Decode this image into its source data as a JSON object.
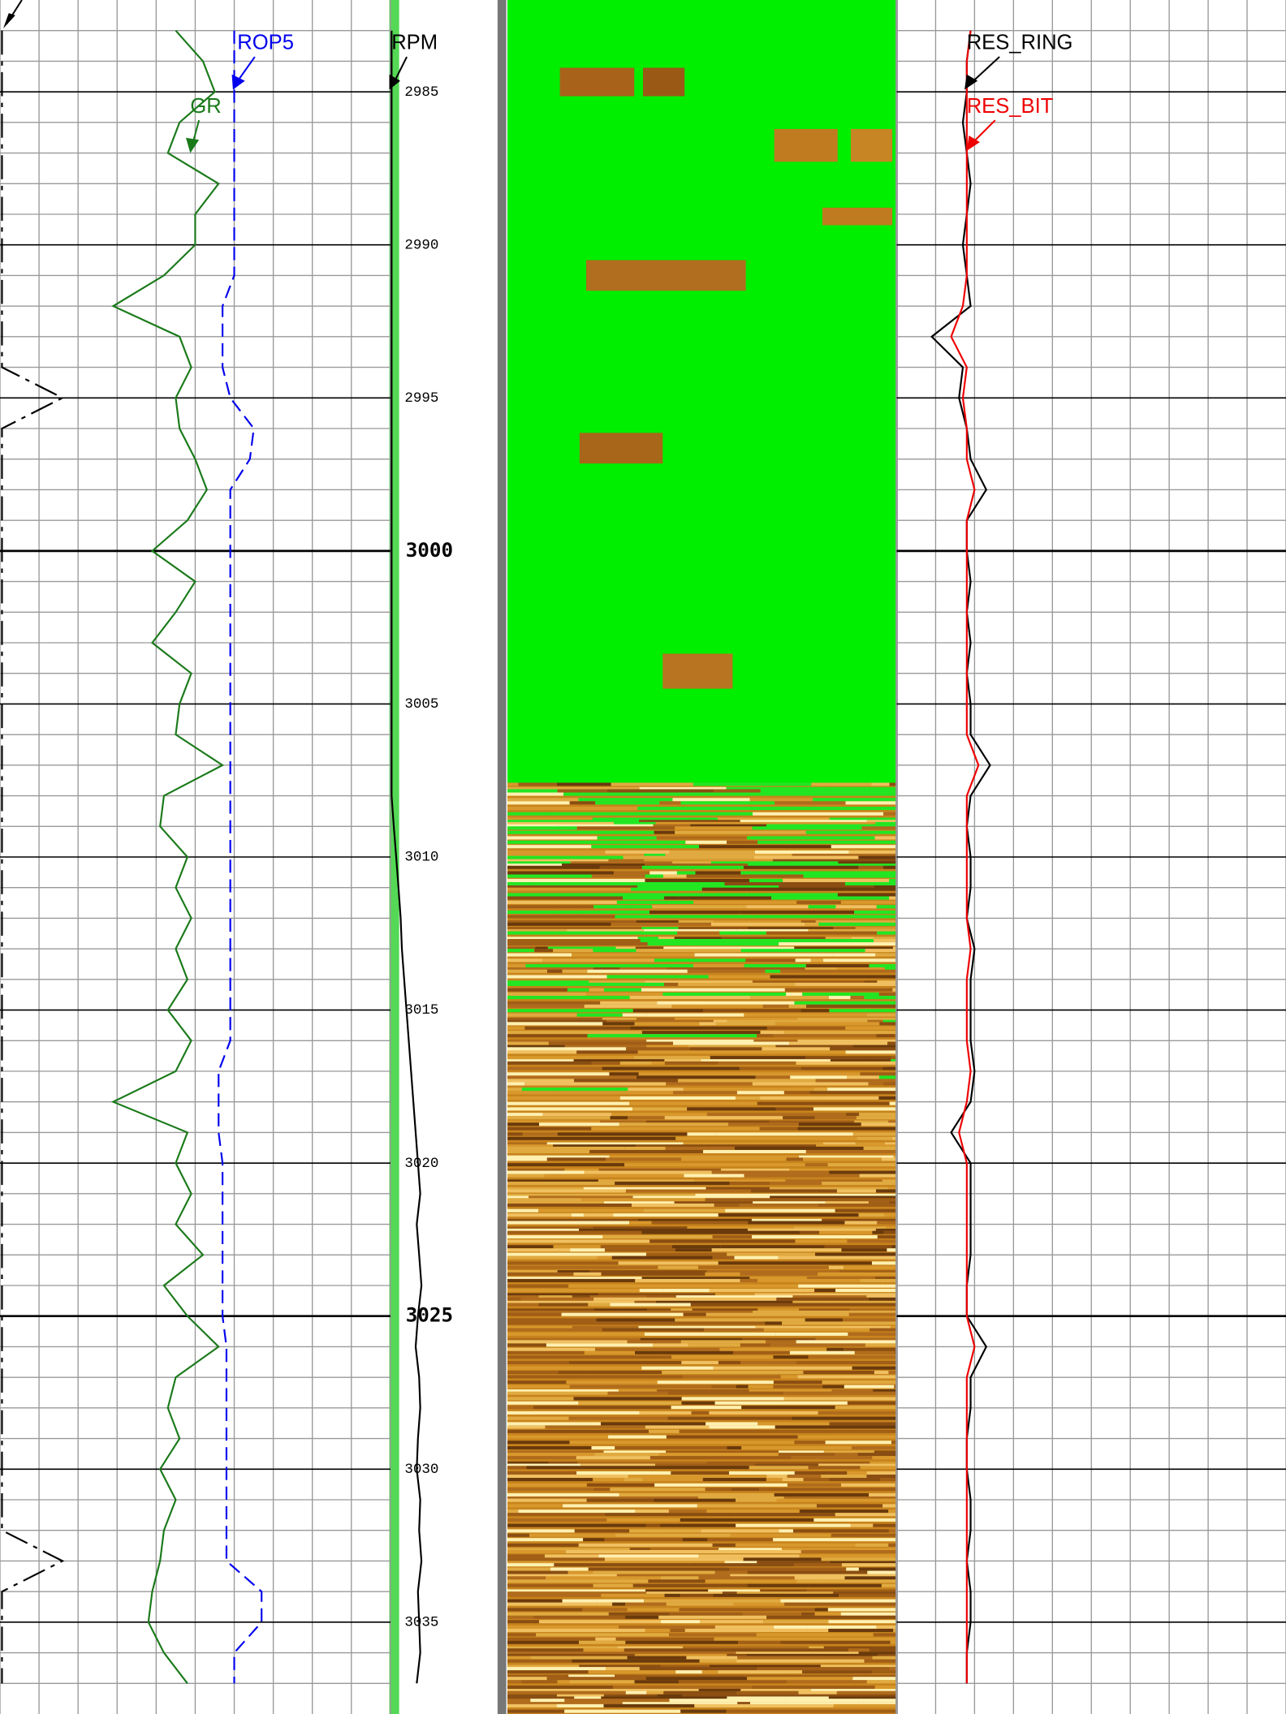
{
  "chart_data": {
    "type": "well-log",
    "ylim": [
      2982,
      3038
    ],
    "yticks": [
      2985,
      2990,
      2995,
      3000,
      3005,
      3010,
      3015,
      3020,
      3025,
      3030,
      3035
    ],
    "bold_yticks": [
      3000,
      3025
    ],
    "depth": [
      2983,
      2984,
      2985,
      2986,
      2987,
      2988,
      2989,
      2990,
      2991,
      2992,
      2993,
      2994,
      2995,
      2996,
      2997,
      2998,
      2999,
      3000,
      3001,
      3002,
      3003,
      3004,
      3005,
      3006,
      3007,
      3008,
      3009,
      3010,
      3011,
      3012,
      3013,
      3014,
      3015,
      3016,
      3017,
      3018,
      3019,
      3020,
      3021,
      3022,
      3023,
      3024,
      3025,
      3026,
      3027,
      3028,
      3029,
      3030,
      3031,
      3032,
      3033,
      3034,
      3035,
      3036,
      3037
    ],
    "grid": true,
    "tracks": [
      {
        "xlim": [
          0,
          10
        ],
        "xticks": [
          0,
          1,
          2,
          3,
          4,
          5,
          6,
          7,
          8,
          9,
          10
        ],
        "series": [
          {
            "name": "GR",
            "color": "#1a7a1a",
            "dash": "solid",
            "values": [
              4.5,
              5.2,
              5.5,
              4.6,
              4.3,
              5.6,
              5.0,
              5.0,
              4.2,
              2.9,
              4.6,
              4.9,
              4.5,
              4.6,
              5.0,
              5.3,
              4.8,
              3.9,
              5.0,
              4.5,
              3.9,
              4.9,
              4.6,
              4.5,
              5.7,
              4.2,
              4.1,
              4.8,
              4.5,
              4.9,
              4.5,
              4.8,
              4.3,
              4.9,
              4.5,
              2.9,
              4.8,
              4.5,
              4.9,
              4.5,
              5.2,
              4.2,
              4.8,
              5.6,
              4.5,
              4.3,
              4.6,
              4.1,
              4.5,
              4.2,
              4.1,
              3.9,
              3.8,
              4.2,
              4.8
            ]
          },
          {
            "name": "ROP5",
            "color": "#0000ee",
            "dash": "dashed",
            "values": [
              6.0,
              6.0,
              6.0,
              6.0,
              6.0,
              6.0,
              6.0,
              6.0,
              6.0,
              5.7,
              5.7,
              5.7,
              5.9,
              6.5,
              6.4,
              5.9,
              5.9,
              5.9,
              5.9,
              5.9,
              5.9,
              5.9,
              5.9,
              5.9,
              5.9,
              5.9,
              5.9,
              5.9,
              5.9,
              5.9,
              5.9,
              5.9,
              5.9,
              5.9,
              5.6,
              5.6,
              5.6,
              5.7,
              5.7,
              5.7,
              5.7,
              5.7,
              5.7,
              5.8,
              5.8,
              5.8,
              5.8,
              5.8,
              5.8,
              5.8,
              5.8,
              6.7,
              6.7,
              6.0,
              6.0
            ]
          },
          {
            "color": "#000000",
            "dash": "dashdot",
            "values": [
              0.05,
              0.05,
              0.05,
              0.05,
              0.05,
              0.05,
              0.05,
              0.05,
              0.05,
              0.05,
              0.05,
              0.05,
              1.6,
              0.05,
              0.05,
              0.05,
              0.05,
              0.05,
              0.05,
              0.05,
              0.05,
              0.05,
              0.05,
              0.05,
              0.05,
              0.05,
              0.05,
              0.05,
              0.05,
              0.05,
              0.05,
              0.05,
              0.05,
              0.05,
              0.05,
              0.05,
              0.05,
              0.05,
              0.05,
              0.05,
              0.05,
              0.05,
              0.05,
              0.05,
              0.05,
              0.05,
              0.05,
              0.05,
              0.05,
              0.05,
              1.6,
              0.05,
              0.05,
              0.05,
              0.05
            ]
          }
        ]
      },
      {
        "xlim": [
          0,
          10
        ],
        "series": [
          {
            "name": "RPM",
            "color": "#000000",
            "dash": "solid",
            "values": [
              0.1,
              0.1,
              0.1,
              0.1,
              0.1,
              0.1,
              0.1,
              0.1,
              0.1,
              0.1,
              0.1,
              0.1,
              0.1,
              0.1,
              0.1,
              0.1,
              0.1,
              0.1,
              0.1,
              0.1,
              0.1,
              0.1,
              0.1,
              0.1,
              0.1,
              0.1,
              0.3,
              0.5,
              0.7,
              0.9,
              1.0,
              1.2,
              1.4,
              1.6,
              1.8,
              2.0,
              2.2,
              2.4,
              2.6,
              2.3,
              2.5,
              2.7,
              2.4,
              2.2,
              2.5,
              2.6,
              2.4,
              2.3,
              2.6,
              2.5,
              2.7,
              2.4,
              2.5,
              2.6,
              2.3
            ]
          }
        ]
      },
      {
        "xlim": [
          0,
          10
        ],
        "xticks": [
          0,
          1,
          2,
          3,
          4,
          5,
          6,
          7,
          8,
          9,
          10
        ],
        "series": [
          {
            "name": "RES_RING",
            "color": "#000000",
            "dash": "solid",
            "values": [
              1.9,
              1.8,
              1.8,
              1.7,
              1.8,
              1.9,
              1.8,
              1.7,
              1.8,
              1.9,
              0.9,
              1.7,
              1.6,
              1.8,
              1.9,
              2.3,
              1.8,
              1.8,
              1.9,
              1.8,
              1.9,
              1.8,
              1.9,
              1.9,
              2.4,
              1.9,
              1.8,
              1.9,
              1.9,
              1.8,
              2.0,
              1.9,
              1.9,
              1.9,
              2.0,
              1.9,
              1.4,
              1.9,
              1.9,
              1.9,
              1.9,
              1.8,
              1.8,
              2.3,
              1.9,
              1.9,
              1.8,
              1.8,
              1.9,
              1.9,
              1.8,
              1.9,
              1.9,
              1.8,
              1.8
            ]
          },
          {
            "name": "RES_BIT",
            "color": "#ee0000",
            "dash": "solid",
            "values": [
              1.9,
              1.8,
              1.8,
              1.8,
              1.8,
              1.8,
              1.8,
              1.8,
              1.8,
              1.7,
              1.4,
              1.8,
              1.7,
              1.8,
              1.8,
              2.0,
              1.8,
              1.8,
              1.8,
              1.8,
              1.8,
              1.8,
              1.8,
              1.8,
              2.1,
              1.8,
              1.8,
              1.8,
              1.8,
              1.8,
              1.9,
              1.8,
              1.8,
              1.8,
              1.9,
              1.8,
              1.6,
              1.8,
              1.8,
              1.8,
              1.8,
              1.8,
              1.8,
              2.0,
              1.8,
              1.8,
              1.8,
              1.8,
              1.8,
              1.8,
              1.8,
              1.8,
              1.8,
              1.8,
              1.8
            ]
          }
        ]
      }
    ]
  }
}
